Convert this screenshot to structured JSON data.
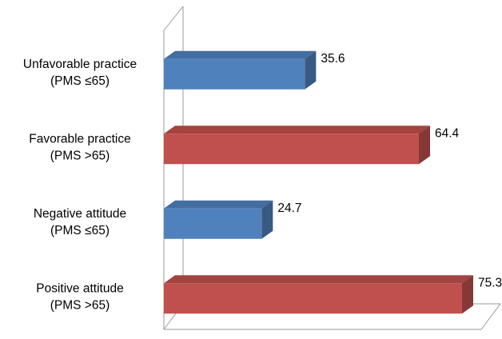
{
  "chart_data": {
    "type": "bar",
    "orientation": "horizontal",
    "three_d": true,
    "categories": [
      [
        "Unfavorable practice",
        "(PMS ≤65)"
      ],
      [
        "Favorable practice",
        "(PMS >65)"
      ],
      [
        "Negative attitude",
        "(PMS ≤65)"
      ],
      [
        "Positive attitude",
        "(PMS >65)"
      ]
    ],
    "values": [
      35.6,
      64.4,
      24.7,
      75.3
    ],
    "value_labels": [
      "35.6",
      "64.4",
      "24.7",
      "75.3"
    ],
    "bar_colors": [
      "#4F81BD",
      "#C0504D",
      "#4F81BD",
      "#C0504D"
    ],
    "xlim": [
      0,
      75.3
    ],
    "grid": false,
    "legend": "none"
  }
}
